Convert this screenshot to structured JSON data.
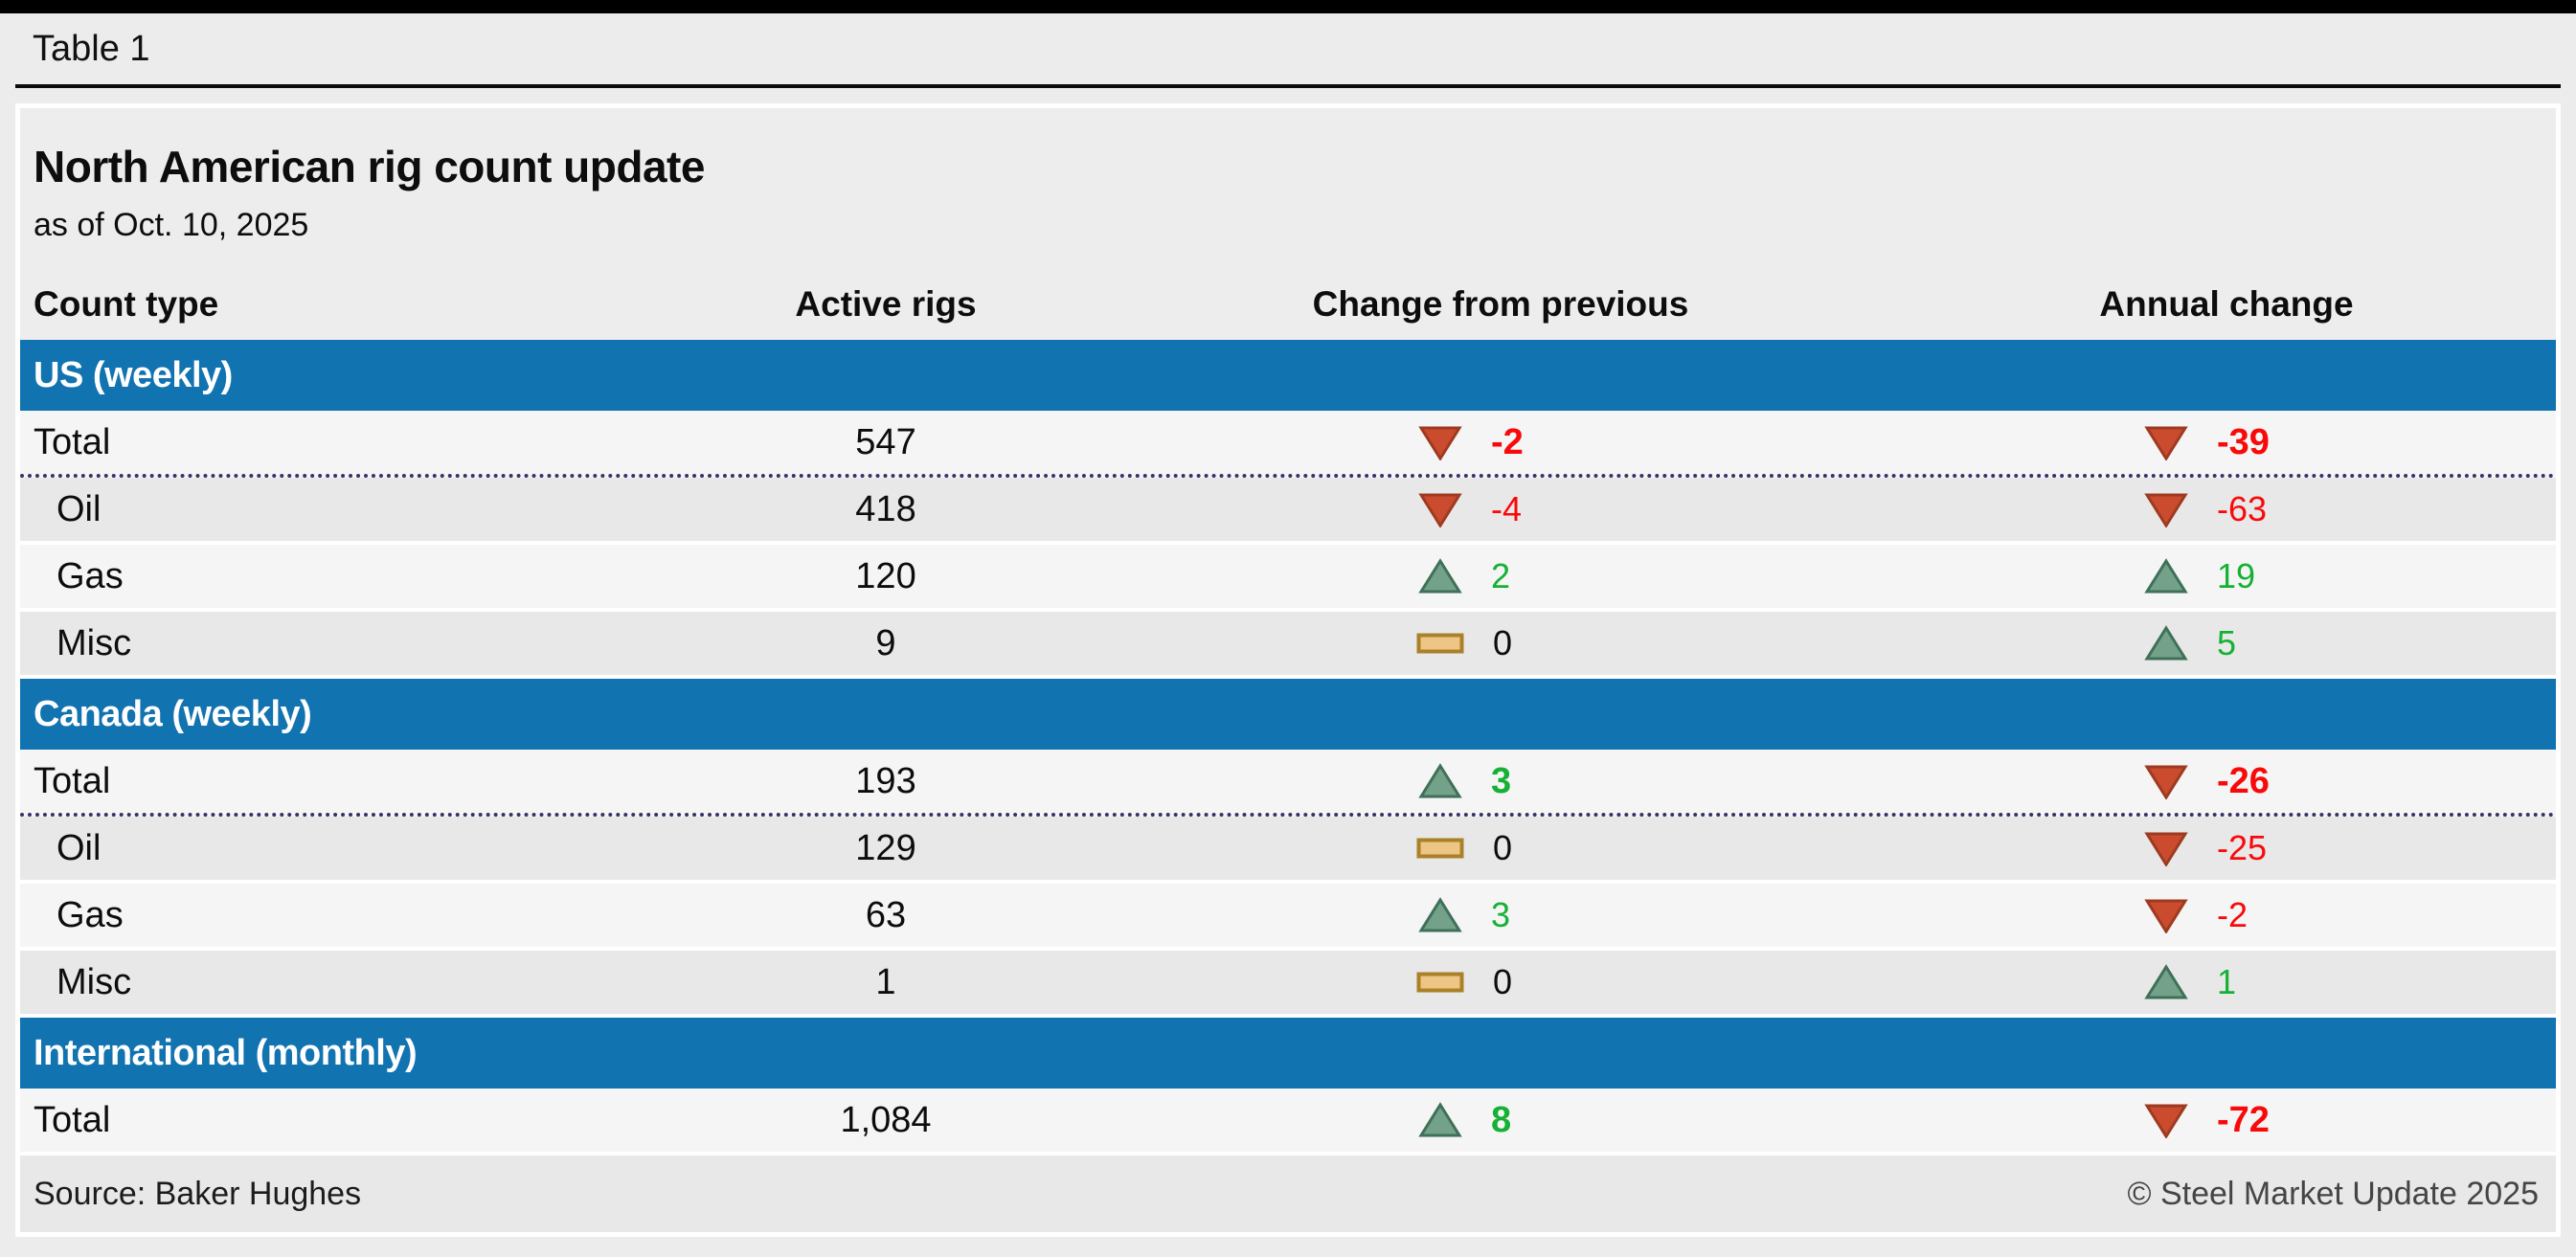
{
  "figure": {
    "tab_label": "Table 1"
  },
  "chart_data": {
    "type": "table",
    "title": "North American rig count update",
    "subtitle": "as of Oct. 10, 2025",
    "columns": [
      "Count type",
      "Active rigs",
      "Change from previous",
      "Annual change"
    ],
    "sections": [
      {
        "label": "US (weekly)",
        "rows": [
          {
            "type": "Total",
            "is_total": true,
            "divider": "dotted",
            "active": 547,
            "active_display": "547",
            "change": -2,
            "change_display": "-2",
            "change_dir": "down",
            "annual": -39,
            "annual_display": "-39",
            "annual_dir": "down"
          },
          {
            "type": "Oil",
            "is_total": false,
            "divider": "solid",
            "active": 418,
            "active_display": "418",
            "change": -4,
            "change_display": "-4",
            "change_dir": "down",
            "annual": -63,
            "annual_display": "-63",
            "annual_dir": "down"
          },
          {
            "type": "Gas",
            "is_total": false,
            "divider": "solid",
            "active": 120,
            "active_display": "120",
            "change": 2,
            "change_display": "2",
            "change_dir": "up",
            "annual": 19,
            "annual_display": "19",
            "annual_dir": "up"
          },
          {
            "type": "Misc",
            "is_total": false,
            "divider": "solid",
            "active": 9,
            "active_display": "9",
            "change": 0,
            "change_display": "0",
            "change_dir": "flat",
            "annual": 5,
            "annual_display": "5",
            "annual_dir": "up"
          }
        ]
      },
      {
        "label": "Canada (weekly)",
        "rows": [
          {
            "type": "Total",
            "is_total": true,
            "divider": "dotted",
            "active": 193,
            "active_display": "193",
            "change": 3,
            "change_display": "3",
            "change_dir": "up",
            "annual": -26,
            "annual_display": "-26",
            "annual_dir": "down"
          },
          {
            "type": "Oil",
            "is_total": false,
            "divider": "solid",
            "active": 129,
            "active_display": "129",
            "change": 0,
            "change_display": "0",
            "change_dir": "flat",
            "annual": -25,
            "annual_display": "-25",
            "annual_dir": "down"
          },
          {
            "type": "Gas",
            "is_total": false,
            "divider": "solid",
            "active": 63,
            "active_display": "63",
            "change": 3,
            "change_display": "3",
            "change_dir": "up",
            "annual": -2,
            "annual_display": "-2",
            "annual_dir": "down"
          },
          {
            "type": "Misc",
            "is_total": false,
            "divider": "solid",
            "active": 1,
            "active_display": "1",
            "change": 0,
            "change_display": "0",
            "change_dir": "flat",
            "annual": 1,
            "annual_display": "1",
            "annual_dir": "up"
          }
        ]
      },
      {
        "label": "International (monthly)",
        "rows": [
          {
            "type": "Total",
            "is_total": true,
            "divider": "solid",
            "active": 1084,
            "active_display": "1,084",
            "change": 8,
            "change_display": "8",
            "change_dir": "up",
            "annual": -72,
            "annual_display": "-72",
            "annual_dir": "down"
          }
        ]
      }
    ],
    "source": "Source: Baker Hughes",
    "copyright": "© Steel Market Update 2025"
  },
  "colors": {
    "section_bar_blue": "#1173b0",
    "negative_text": "#f90a0a",
    "positive_text": "#15b135",
    "zero_text": "#0d0d0d",
    "up_arrow_fill": "#73a189",
    "up_arrow_stroke": "#3f7058",
    "down_arrow_fill": "#ca4b2e",
    "down_arrow_stroke": "#9e3a20",
    "flat_fill": "#edc584",
    "flat_stroke": "#aa8129",
    "dotted_divider": "#34346a",
    "row_light": "#f5f5f5",
    "row_dark": "#e8e8e8"
  }
}
